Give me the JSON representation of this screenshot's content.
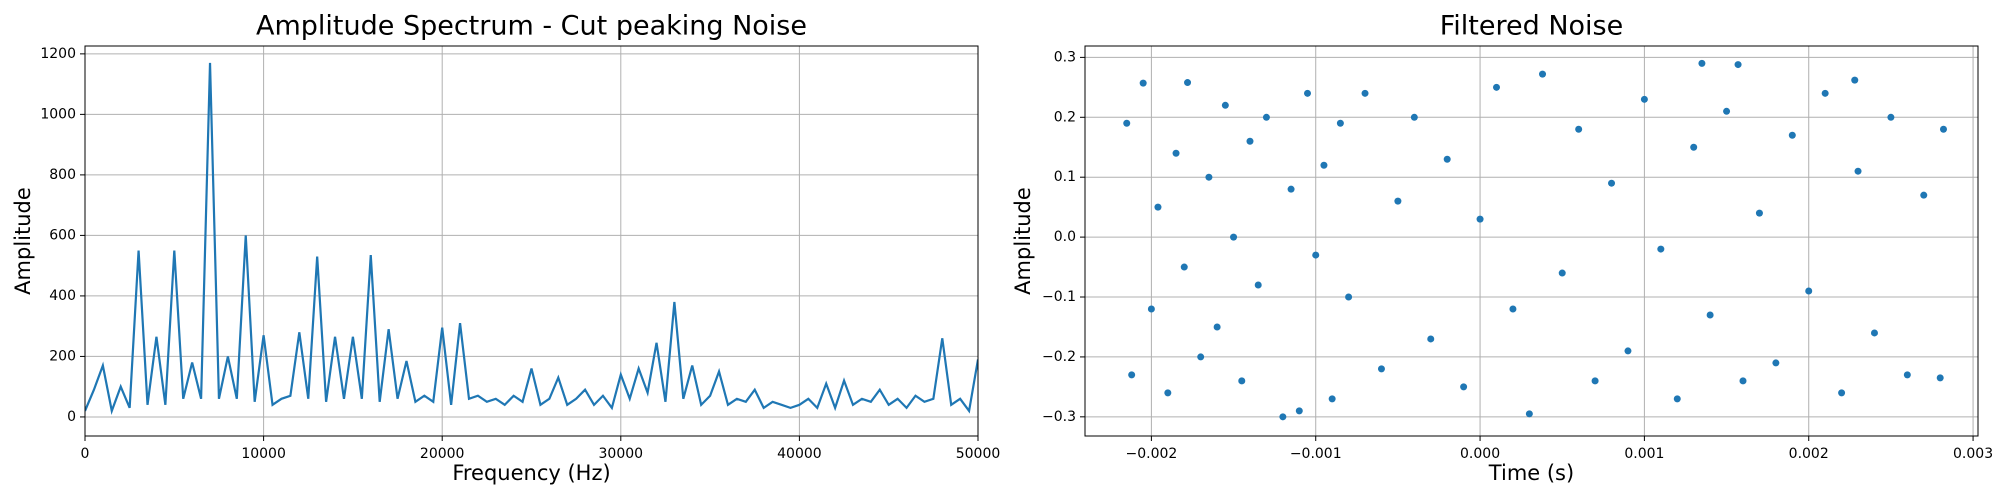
{
  "chart_data": [
    {
      "type": "line",
      "title": "Amplitude Spectrum - Cut peaking Noise",
      "xlabel": "Frequency (Hz)",
      "ylabel": "Amplitude",
      "grid": true,
      "color": "#1f77b4",
      "x": [
        0,
        500,
        1000,
        1500,
        2000,
        2500,
        3000,
        3500,
        4000,
        4500,
        5000,
        5500,
        6000,
        6500,
        7000,
        7500,
        8000,
        8500,
        9000,
        9500,
        10000,
        10500,
        11000,
        11500,
        12000,
        12500,
        13000,
        13500,
        14000,
        14500,
        15000,
        15500,
        16000,
        16500,
        17000,
        17500,
        18000,
        18500,
        19000,
        19500,
        20000,
        20500,
        21000,
        21500,
        22000,
        22500,
        23000,
        23500,
        24000,
        24500,
        25000,
        25500,
        26000,
        26500,
        27000,
        27500,
        28000,
        28500,
        29000,
        29500,
        30000,
        30500,
        31000,
        31500,
        32000,
        32500,
        33000,
        33500,
        34000,
        34500,
        35000,
        35500,
        36000,
        36500,
        37000,
        37500,
        38000,
        38500,
        39000,
        39500,
        40000,
        40500,
        41000,
        41500,
        42000,
        42500,
        43000,
        43500,
        44000,
        44500,
        45000,
        45500,
        46000,
        46500,
        47000,
        47500,
        48000,
        48500,
        49000,
        49500,
        50000
      ],
      "values": [
        20,
        90,
        170,
        20,
        100,
        30,
        550,
        40,
        265,
        40,
        550,
        60,
        180,
        60,
        1170,
        60,
        200,
        60,
        600,
        50,
        270,
        40,
        60,
        70,
        280,
        60,
        530,
        50,
        265,
        60,
        265,
        60,
        535,
        50,
        290,
        60,
        185,
        50,
        70,
        50,
        295,
        40,
        310,
        60,
        70,
        50,
        60,
        40,
        70,
        50,
        160,
        40,
        60,
        130,
        40,
        60,
        90,
        40,
        70,
        30,
        140,
        60,
        160,
        80,
        245,
        50,
        380,
        60,
        170,
        40,
        70,
        150,
        40,
        60,
        50,
        90,
        30,
        50,
        40,
        30,
        40,
        60,
        30,
        110,
        30,
        120,
        40,
        60,
        50,
        90,
        40,
        60,
        30,
        70,
        50,
        60,
        260,
        40,
        60,
        20,
        190
      ],
      "xlim": [
        0,
        50000
      ],
      "xticks": [
        0,
        10000,
        20000,
        30000,
        40000,
        50000
      ],
      "ylim": [
        -63,
        1226
      ],
      "yticks": [
        0,
        200,
        400,
        600,
        800,
        1000,
        1200
      ]
    },
    {
      "type": "scatter",
      "title": "Filtered Noise",
      "xlabel": "Time (s)",
      "ylabel": "Amplitude",
      "grid": true,
      "color": "#1f77b4",
      "x": [
        -0.00215,
        -0.00212,
        -0.00205,
        -0.002,
        -0.00196,
        -0.0019,
        -0.00185,
        -0.0018,
        -0.00178,
        -0.0017,
        -0.00165,
        -0.0016,
        -0.00155,
        -0.0015,
        -0.00145,
        -0.0014,
        -0.00135,
        -0.0013,
        -0.0012,
        -0.00115,
        -0.0011,
        -0.00105,
        -0.001,
        -0.00095,
        -0.0009,
        -0.00085,
        -0.0008,
        -0.0007,
        -0.0006,
        -0.0005,
        -0.0004,
        -0.0003,
        -0.0002,
        -0.0001,
        0.0,
        0.0001,
        0.0002,
        0.0003,
        0.00038,
        0.0005,
        0.0006,
        0.0007,
        0.0008,
        0.0009,
        0.001,
        0.0011,
        0.0012,
        0.0013,
        0.00135,
        0.0014,
        0.0015,
        0.00157,
        0.0016,
        0.0017,
        0.0018,
        0.0019,
        0.002,
        0.0021,
        0.0022,
        0.00228,
        0.0023,
        0.0024,
        0.0025,
        0.0026,
        0.0027,
        0.0028,
        0.00282
      ],
      "y": [
        0.19,
        -0.23,
        0.257,
        -0.12,
        0.05,
        -0.26,
        0.14,
        -0.05,
        0.258,
        -0.2,
        0.1,
        -0.15,
        0.22,
        0.0,
        -0.24,
        0.16,
        -0.08,
        0.2,
        -0.3,
        0.08,
        -0.29,
        0.24,
        -0.03,
        0.12,
        -0.27,
        0.19,
        -0.1,
        0.24,
        -0.22,
        0.06,
        0.2,
        -0.17,
        0.13,
        -0.25,
        0.03,
        0.25,
        -0.12,
        -0.295,
        0.272,
        -0.06,
        0.18,
        -0.24,
        0.09,
        -0.19,
        0.23,
        -0.02,
        -0.27,
        0.15,
        0.29,
        -0.13,
        0.21,
        0.288,
        -0.24,
        0.04,
        -0.21,
        0.17,
        -0.09,
        0.24,
        -0.26,
        0.262,
        0.11,
        -0.16,
        0.2,
        -0.23,
        0.07,
        -0.235,
        0.18
      ],
      "xlim": [
        -0.002404,
        0.00303
      ],
      "xticks": [
        {
          "value": -0.002,
          "label": "−0.002"
        },
        {
          "value": -0.001,
          "label": "−0.001"
        },
        {
          "value": 0,
          "label": "0.000"
        },
        {
          "value": 0.001,
          "label": "0.001"
        },
        {
          "value": 0.002,
          "label": "0.002"
        },
        {
          "value": 0.003,
          "label": "0.003"
        }
      ],
      "ylim": [
        -0.332,
        0.319
      ],
      "yticks": [
        {
          "value": -0.3,
          "label": "−0.3"
        },
        {
          "value": -0.2,
          "label": "−0.2"
        },
        {
          "value": -0.1,
          "label": "−0.1"
        },
        {
          "value": 0,
          "label": "0.0"
        },
        {
          "value": 0.1,
          "label": "0.1"
        },
        {
          "value": 0.2,
          "label": "0.2"
        },
        {
          "value": 0.3,
          "label": "0.3"
        }
      ]
    }
  ]
}
